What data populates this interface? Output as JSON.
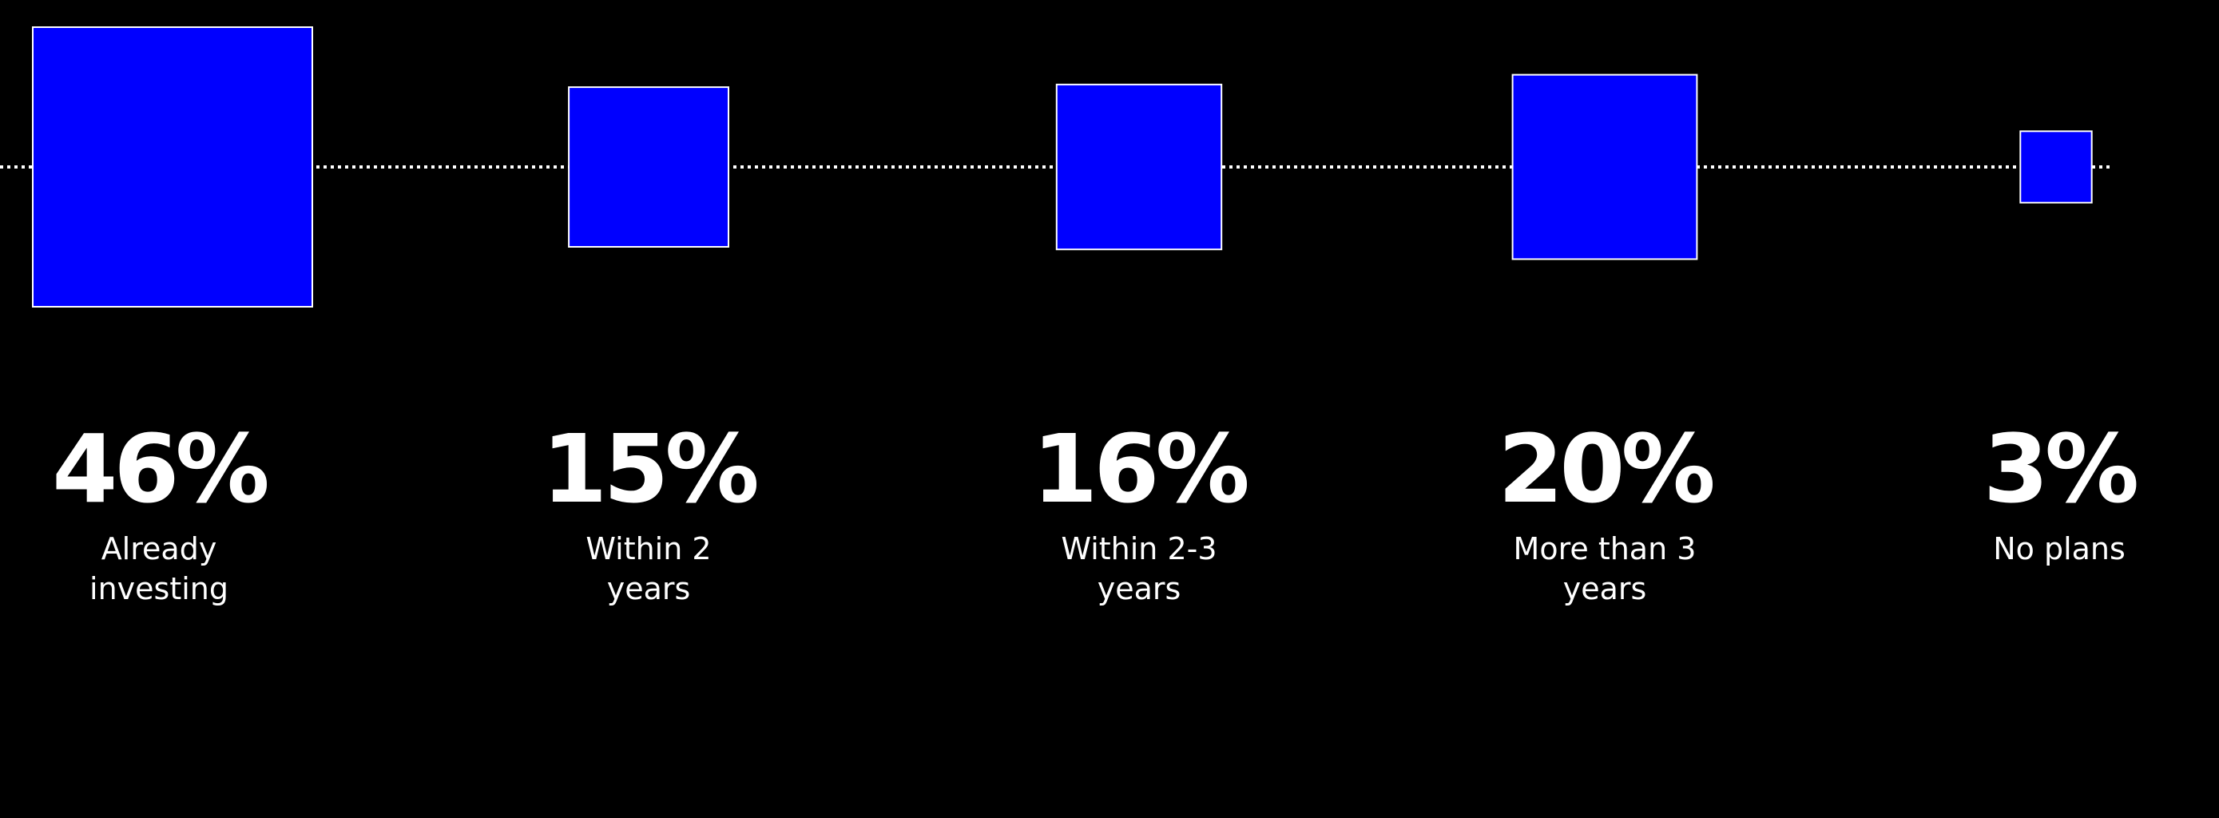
{
  "chart_data": {
    "type": "bubble",
    "categories": [
      "Already investing",
      "Within 2 years",
      "Within 2-3 years",
      "More than 3 years",
      "No plans"
    ],
    "values": [
      46,
      15,
      16,
      20,
      3
    ],
    "value_labels": [
      "46%",
      "15%",
      "16%",
      "20%",
      "3%"
    ],
    "unit": "%",
    "marker_shape": "square",
    "marker_area_proportional_to_value": true,
    "connector": "dotted line",
    "colors": {
      "background": "#000000",
      "marker_fill": "#0000ff",
      "marker_stroke": "#ffffff",
      "text": "#ffffff",
      "connector": "#ffffff"
    }
  }
}
